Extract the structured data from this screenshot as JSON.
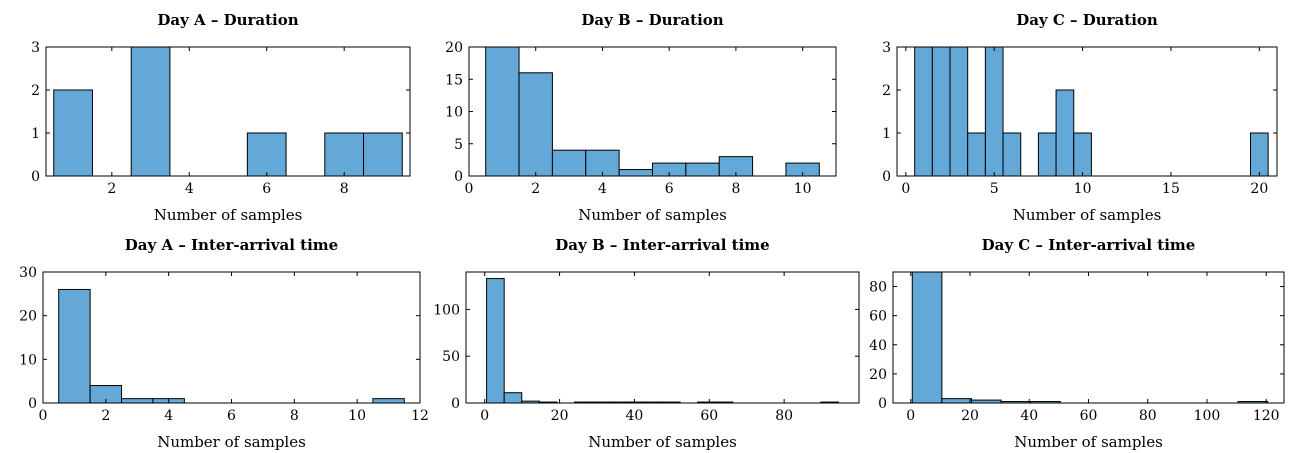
{
  "bar_color": "#64a8d8",
  "bar_stroke": "#000000",
  "chart_data": [
    {
      "type": "bar",
      "title": "Day A – Duration",
      "xlabel": "Number of samples",
      "xlim": [
        0.3,
        9.7
      ],
      "ylim": [
        0,
        3
      ],
      "xticks": [
        2,
        4,
        6,
        8
      ],
      "yticks": [
        0,
        1,
        2,
        3
      ],
      "bin_width": 1,
      "bins": [
        {
          "x0": 0.5,
          "x1": 1.5,
          "value": 2
        },
        {
          "x0": 2.5,
          "x1": 3.5,
          "value": 3
        },
        {
          "x0": 5.5,
          "x1": 6.5,
          "value": 1
        },
        {
          "x0": 7.5,
          "x1": 8.5,
          "value": 1
        },
        {
          "x0": 8.5,
          "x1": 9.5,
          "value": 1
        }
      ]
    },
    {
      "type": "bar",
      "title": "Day B – Duration",
      "xlabel": "Number of samples",
      "xlim": [
        0,
        11
      ],
      "ylim": [
        0,
        20
      ],
      "xticks": [
        0,
        2,
        4,
        6,
        8,
        10
      ],
      "yticks": [
        0,
        5,
        10,
        15,
        20
      ],
      "bins": [
        {
          "x0": 0.5,
          "x1": 1.5,
          "value": 20
        },
        {
          "x0": 1.5,
          "x1": 2.5,
          "value": 16
        },
        {
          "x0": 2.5,
          "x1": 3.5,
          "value": 4
        },
        {
          "x0": 3.5,
          "x1": 4.5,
          "value": 4
        },
        {
          "x0": 4.5,
          "x1": 5.5,
          "value": 1
        },
        {
          "x0": 5.5,
          "x1": 6.5,
          "value": 2
        },
        {
          "x0": 6.5,
          "x1": 7.5,
          "value": 2
        },
        {
          "x0": 7.5,
          "x1": 8.5,
          "value": 3
        },
        {
          "x0": 9.5,
          "x1": 10.5,
          "value": 2
        }
      ]
    },
    {
      "type": "bar",
      "title": "Day C – Duration",
      "xlabel": "Number of samples",
      "xlim": [
        -0.5,
        21
      ],
      "ylim": [
        0,
        3
      ],
      "xticks": [
        0,
        5,
        10,
        15,
        20
      ],
      "yticks": [
        0,
        1,
        2,
        3
      ],
      "bins": [
        {
          "x0": 0.5,
          "x1": 1.5,
          "value": 3
        },
        {
          "x0": 1.5,
          "x1": 2.5,
          "value": 3
        },
        {
          "x0": 2.5,
          "x1": 3.5,
          "value": 3
        },
        {
          "x0": 3.5,
          "x1": 4.5,
          "value": 1
        },
        {
          "x0": 4.5,
          "x1": 5.5,
          "value": 3
        },
        {
          "x0": 5.5,
          "x1": 6.5,
          "value": 1
        },
        {
          "x0": 7.5,
          "x1": 8.5,
          "value": 1
        },
        {
          "x0": 8.5,
          "x1": 9.5,
          "value": 2
        },
        {
          "x0": 9.5,
          "x1": 10.5,
          "value": 1
        },
        {
          "x0": 19.5,
          "x1": 20.5,
          "value": 1
        }
      ]
    },
    {
      "type": "bar",
      "title": "Day A – Inter-arrival time",
      "xlabel": "Number of samples",
      "xlim": [
        0,
        12
      ],
      "ylim": [
        0,
        30
      ],
      "xticks": [
        0,
        2,
        4,
        6,
        8,
        10,
        12
      ],
      "yticks": [
        0,
        10,
        20,
        30
      ],
      "bins": [
        {
          "x0": 0.5,
          "x1": 1.5,
          "value": 26
        },
        {
          "x0": 1.5,
          "x1": 2.5,
          "value": 4
        },
        {
          "x0": 2.5,
          "x1": 3.5,
          "value": 1
        },
        {
          "x0": 3.5,
          "x1": 4.5,
          "value": 1
        },
        {
          "x0": 10.5,
          "x1": 11.5,
          "value": 1
        }
      ]
    },
    {
      "type": "bar",
      "title": "Day B – Inter-arrival time",
      "xlabel": "Number of samples",
      "xlim": [
        -5,
        100
      ],
      "ylim": [
        0,
        140
      ],
      "xticks": [
        0,
        20,
        40,
        60,
        80
      ],
      "yticks": [
        0,
        50,
        100
      ],
      "bins": [
        {
          "x0": 0.5,
          "x1": 5.2,
          "value": 133
        },
        {
          "x0": 5.2,
          "x1": 9.9,
          "value": 11
        },
        {
          "x0": 9.9,
          "x1": 14.6,
          "value": 2
        },
        {
          "x0": 14.6,
          "x1": 19.3,
          "value": 1
        },
        {
          "x0": 24,
          "x1": 28.7,
          "value": 1
        },
        {
          "x0": 28.7,
          "x1": 33.4,
          "value": 1
        },
        {
          "x0": 33.4,
          "x1": 38.1,
          "value": 1
        },
        {
          "x0": 38.1,
          "x1": 42.8,
          "value": 1
        },
        {
          "x0": 42.8,
          "x1": 47.5,
          "value": 1
        },
        {
          "x0": 47.5,
          "x1": 52.2,
          "value": 1
        },
        {
          "x0": 56.9,
          "x1": 61.6,
          "value": 1
        },
        {
          "x0": 61.6,
          "x1": 66.3,
          "value": 1
        },
        {
          "x0": 89.8,
          "x1": 94.5,
          "value": 1
        }
      ]
    },
    {
      "type": "bar",
      "title": "Day C – Inter-arrival time",
      "xlabel": "Number of samples",
      "xlim": [
        -6,
        126
      ],
      "ylim": [
        0,
        90
      ],
      "xticks": [
        0,
        20,
        40,
        60,
        80,
        100,
        120
      ],
      "yticks": [
        0,
        20,
        40,
        60,
        80
      ],
      "bins": [
        {
          "x0": 0.5,
          "x1": 10.5,
          "value": 90
        },
        {
          "x0": 10.5,
          "x1": 20.5,
          "value": 3
        },
        {
          "x0": 20.5,
          "x1": 30.5,
          "value": 2
        },
        {
          "x0": 30.5,
          "x1": 40.5,
          "value": 1
        },
        {
          "x0": 40.5,
          "x1": 50.5,
          "value": 1
        },
        {
          "x0": 110.5,
          "x1": 120.5,
          "value": 1
        }
      ]
    }
  ]
}
